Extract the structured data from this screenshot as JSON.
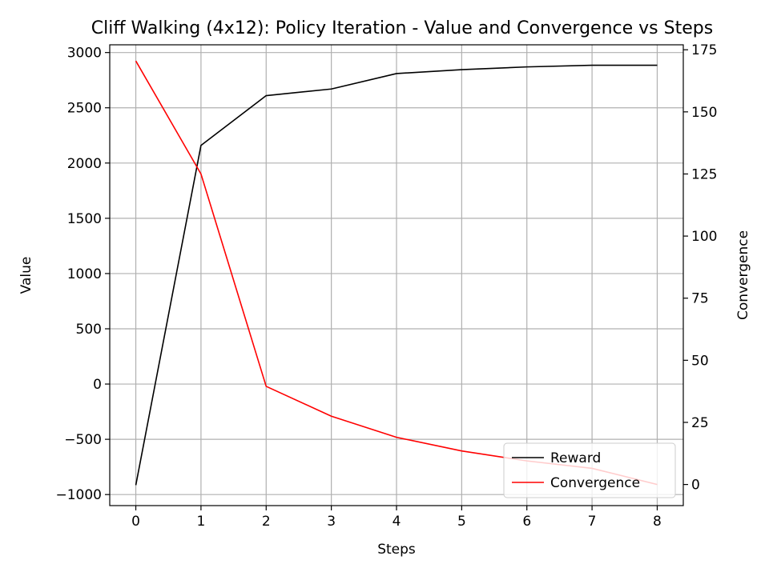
{
  "chart_data": {
    "type": "line",
    "title": "Cliff Walking (4x12): Policy Iteration - Value and Convergence vs Steps",
    "xlabel": "Steps",
    "ylabel_left": "Value",
    "ylabel_right": "Convergence",
    "x": [
      0,
      1,
      2,
      3,
      4,
      5,
      6,
      7,
      8
    ],
    "xlim": [
      -0.4,
      8.4
    ],
    "ylim_left": [
      -1100,
      3070
    ],
    "ylim_right": [
      -8.5,
      177
    ],
    "xticks": [
      0,
      1,
      2,
      3,
      4,
      5,
      6,
      7,
      8
    ],
    "yticks_left": [
      -1000,
      -500,
      0,
      500,
      1000,
      1500,
      2000,
      2500,
      3000
    ],
    "yticks_left_labels": [
      "−1000",
      "−500",
      "0",
      "500",
      "1000",
      "1500",
      "2000",
      "2500",
      "3000"
    ],
    "yticks_right": [
      0,
      25,
      50,
      75,
      100,
      125,
      150,
      175
    ],
    "yticks_right_labels": [
      "0",
      "25",
      "50",
      "75",
      "100",
      "125",
      "150",
      "175"
    ],
    "grid": true,
    "legend_position": "lower-right",
    "series": [
      {
        "name": "Reward",
        "axis": "left",
        "color": "#000000",
        "values": [
          -915,
          2160,
          2610,
          2670,
          2810,
          2845,
          2870,
          2885,
          2885
        ]
      },
      {
        "name": "Convergence",
        "axis": "right",
        "color": "#ff0000",
        "values": [
          170.5,
          125,
          39.5,
          27.5,
          19,
          13.5,
          9.5,
          6.5,
          0
        ]
      }
    ]
  }
}
